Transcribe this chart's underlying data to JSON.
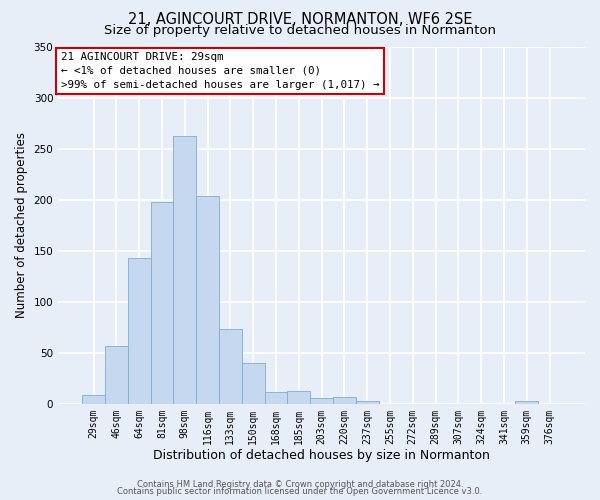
{
  "title": "21, AGINCOURT DRIVE, NORMANTON, WF6 2SE",
  "subtitle": "Size of property relative to detached houses in Normanton",
  "xlabel": "Distribution of detached houses by size in Normanton",
  "ylabel": "Number of detached properties",
  "bin_labels": [
    "29sqm",
    "46sqm",
    "64sqm",
    "81sqm",
    "98sqm",
    "116sqm",
    "133sqm",
    "150sqm",
    "168sqm",
    "185sqm",
    "203sqm",
    "220sqm",
    "237sqm",
    "255sqm",
    "272sqm",
    "289sqm",
    "307sqm",
    "324sqm",
    "341sqm",
    "359sqm",
    "376sqm"
  ],
  "bar_values": [
    9,
    57,
    143,
    198,
    262,
    204,
    73,
    40,
    12,
    13,
    6,
    7,
    3,
    0,
    0,
    0,
    0,
    0,
    0,
    3,
    0
  ],
  "bar_color": "#c5d8f0",
  "bar_edge_color": "#7badd4",
  "ylim": [
    0,
    350
  ],
  "yticks": [
    0,
    50,
    100,
    150,
    200,
    250,
    300,
    350
  ],
  "annotation_title": "21 AGINCOURT DRIVE: 29sqm",
  "annotation_line2": "← <1% of detached houses are smaller (0)",
  "annotation_line3": ">99% of semi-detached houses are larger (1,017) →",
  "annotation_box_color": "#ffffff",
  "annotation_border_color": "#cc0000",
  "footer_line1": "Contains HM Land Registry data © Crown copyright and database right 2024.",
  "footer_line2": "Contains public sector information licensed under the Open Government Licence v3.0.",
  "bg_color": "#e8eef8",
  "plot_bg_color": "#e8eef8",
  "grid_color": "#ffffff",
  "title_fontsize": 10.5,
  "subtitle_fontsize": 9.5,
  "tick_fontsize": 7,
  "ylabel_fontsize": 8.5,
  "xlabel_fontsize": 9,
  "footer_fontsize": 6,
  "ann_fontsize": 7.8
}
